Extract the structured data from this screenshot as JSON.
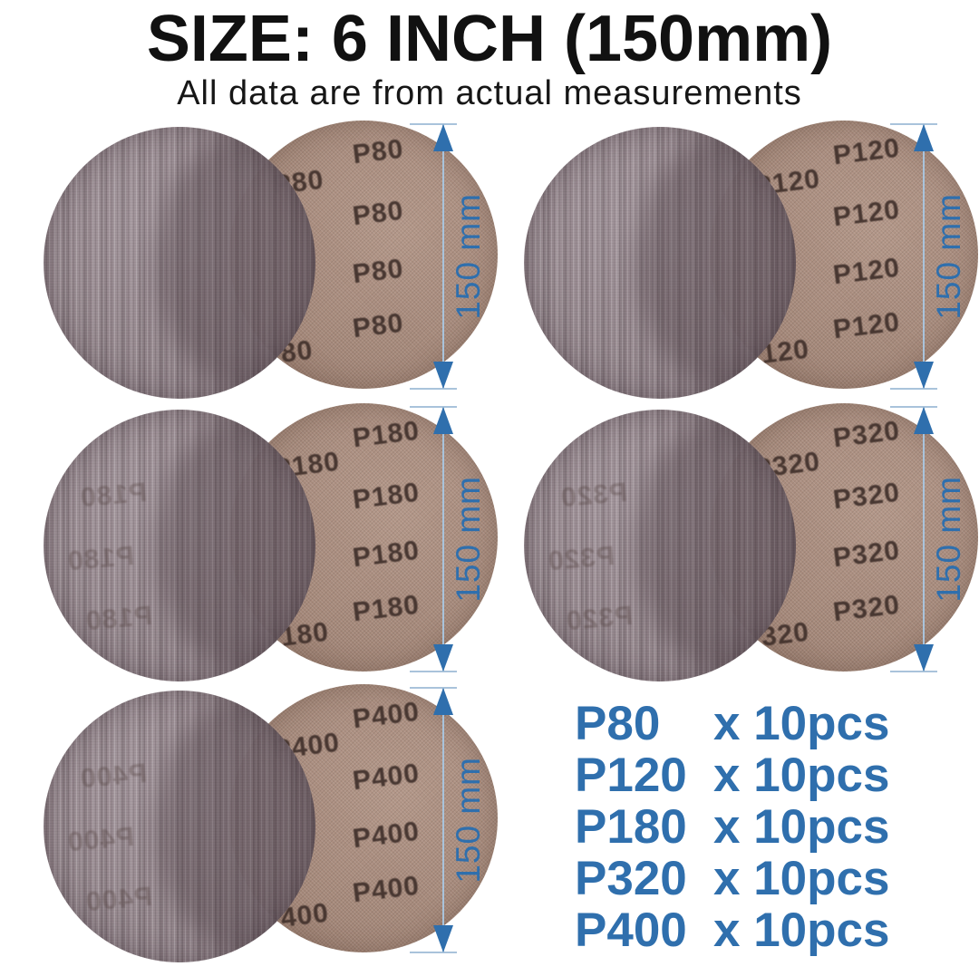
{
  "header": {
    "title": "SIZE: 6 INCH (150mm)",
    "subtitle": "All data are from actual measurements"
  },
  "pairs": [
    {
      "grit": "P80",
      "dimension_label": "150 mm",
      "ghost_text_visible": false
    },
    {
      "grit": "P120",
      "dimension_label": "150 mm",
      "ghost_text_visible": false
    },
    {
      "grit": "P180",
      "dimension_label": "150 mm",
      "ghost_text_visible": true
    },
    {
      "grit": "P320",
      "dimension_label": "150 mm",
      "ghost_text_visible": true
    },
    {
      "grit": "P400",
      "dimension_label": "150 mm",
      "ghost_text_visible": true
    }
  ],
  "quantity_list": [
    {
      "grit": "P80",
      "qty": "x 10pcs"
    },
    {
      "grit": "P120",
      "qty": "x 10pcs"
    },
    {
      "grit": "P180",
      "qty": "x 10pcs"
    },
    {
      "grit": "P320",
      "qty": "x 10pcs"
    },
    {
      "grit": "P400",
      "qty": "x 10pcs"
    }
  ],
  "colors": {
    "accent_blue": "#2f6fad",
    "dim_line_blue": "#a9c3db",
    "disc_front": "#93838a",
    "disc_back": "#ac8d7d",
    "grit_print": "#40302b",
    "title_color": "#111111",
    "background": "#ffffff"
  }
}
